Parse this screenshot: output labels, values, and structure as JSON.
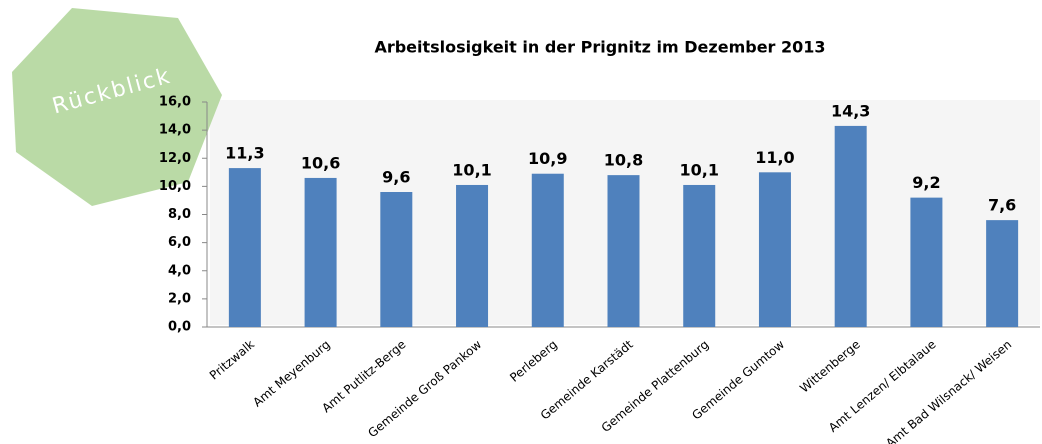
{
  "chart_data": {
    "type": "bar",
    "title": "Arbeitslosigkeit in der Prignitz im Dezember 2013",
    "annotation": "Rückblick",
    "categories": [
      "Pritzwalk",
      "Amt Meyenburg",
      "Amt Putlitz-Berge",
      "Gemeinde Groß Pankow",
      "Perleberg",
      "Gemeinde Karstädt",
      "Gemeinde Plattenburg",
      "Gemeinde Gumtow",
      "Wittenberge",
      "Amt Lenzen/ Elbtalaue",
      "Amt Bad Wilsnack/ Weisen"
    ],
    "values": [
      11.3,
      10.6,
      9.6,
      10.1,
      10.9,
      10.8,
      10.1,
      11.0,
      14.3,
      9.2,
      7.6
    ],
    "value_labels": [
      "11,3",
      "10,6",
      "9,6",
      "10,1",
      "10,9",
      "10,8",
      "10,1",
      "11,0",
      "14,3",
      "9,2",
      "7,6"
    ],
    "color": "#4f81bd",
    "ylim": [
      0,
      16
    ],
    "yticks": [
      {
        "value": 0,
        "label": "0,0"
      },
      {
        "value": 2,
        "label": "2,0"
      },
      {
        "value": 4,
        "label": "4,0"
      },
      {
        "value": 6,
        "label": "6,0"
      },
      {
        "value": 8,
        "label": "8,0"
      },
      {
        "value": 10,
        "label": "10,0"
      },
      {
        "value": 12,
        "label": "12,0"
      },
      {
        "value": 14,
        "label": "14,0"
      },
      {
        "value": 16,
        "label": "16,0"
      }
    ]
  }
}
